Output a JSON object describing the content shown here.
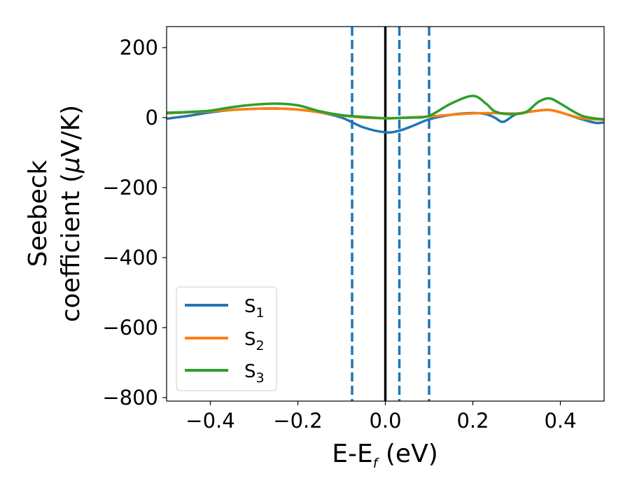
{
  "chart_data": {
    "type": "line",
    "xlabel": {
      "main": "E-E",
      "sub": "f",
      "unit": " (eV)"
    },
    "ylabel": {
      "line1": "Seebeck",
      "line2_prefix": "coefficient  (",
      "mu": "μ",
      "line2_suffix": "V/K)"
    },
    "xlim": [
      -0.5,
      0.5
    ],
    "ylim": [
      -810,
      260
    ],
    "xticks": [
      -0.4,
      -0.2,
      0.0,
      0.2,
      0.4
    ],
    "xtick_labels": [
      "−0.4",
      "−0.2",
      "0.0",
      "0.2",
      "0.4"
    ],
    "yticks": [
      200,
      0,
      -200,
      -400,
      -600,
      -800
    ],
    "ytick_labels": [
      "200",
      "0",
      "−200",
      "−400",
      "−600",
      "−800"
    ],
    "grid": false,
    "legend_position": "lower-left",
    "vertical_lines": [
      {
        "x": 0.0,
        "style": "solid",
        "color": "#000000"
      },
      {
        "x": -0.076,
        "style": "dashed",
        "color": "#1f77b4"
      },
      {
        "x": 0.032,
        "style": "dashed",
        "color": "#1f77b4"
      },
      {
        "x": 0.1,
        "style": "dashed",
        "color": "#1f77b4"
      }
    ],
    "series": [
      {
        "name": "S",
        "sub": "1",
        "color": "#1f77b4",
        "x": [
          -0.5,
          -0.45,
          -0.4,
          -0.35,
          -0.3,
          -0.25,
          -0.2,
          -0.15,
          -0.1,
          -0.05,
          0.0,
          0.03,
          0.06,
          0.1,
          0.15,
          0.2,
          0.23,
          0.25,
          0.27,
          0.3,
          0.35,
          0.375,
          0.4,
          0.45,
          0.48,
          0.5
        ],
        "y": [
          -3,
          5,
          15,
          22,
          25,
          26,
          23,
          15,
          0,
          -28,
          -42,
          -38,
          -25,
          -5,
          8,
          13,
          10,
          0,
          -12,
          10,
          20,
          22,
          15,
          -5,
          -15,
          -14
        ]
      },
      {
        "name": "S",
        "sub": "2",
        "color": "#ff7f0e",
        "x": [
          -0.5,
          -0.45,
          -0.4,
          -0.35,
          -0.3,
          -0.25,
          -0.2,
          -0.15,
          -0.1,
          -0.05,
          0.0,
          0.03,
          0.06,
          0.1,
          0.15,
          0.2,
          0.25,
          0.3,
          0.35,
          0.375,
          0.4,
          0.45,
          0.5
        ],
        "y": [
          12,
          15,
          18,
          22,
          25,
          26,
          23,
          15,
          6,
          0,
          -2,
          -1,
          1,
          3,
          8,
          12,
          13,
          12,
          20,
          22,
          15,
          -2,
          -6
        ]
      },
      {
        "name": "S",
        "sub": "3",
        "color": "#2ca02c",
        "x": [
          -0.5,
          -0.45,
          -0.4,
          -0.35,
          -0.3,
          -0.25,
          -0.2,
          -0.15,
          -0.1,
          -0.05,
          0.0,
          0.03,
          0.06,
          0.1,
          0.15,
          0.2,
          0.23,
          0.25,
          0.28,
          0.32,
          0.35,
          0.375,
          0.4,
          0.45,
          0.5
        ],
        "y": [
          14,
          16,
          20,
          30,
          37,
          40,
          35,
          18,
          7,
          2,
          -2,
          -1,
          0,
          5,
          40,
          62,
          40,
          18,
          10,
          15,
          45,
          55,
          40,
          5,
          -5
        ]
      }
    ]
  }
}
